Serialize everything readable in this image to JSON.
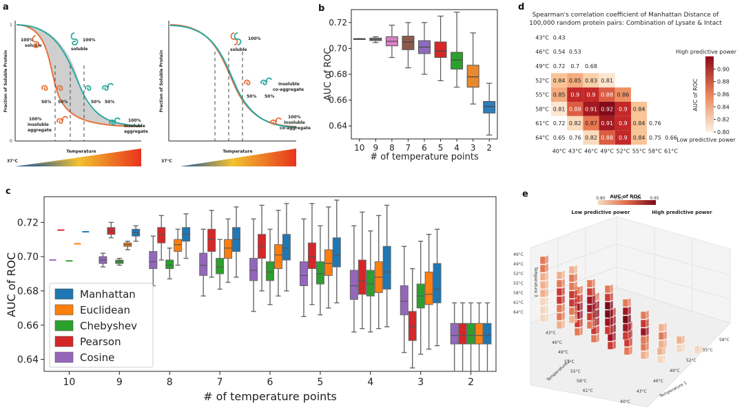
{
  "panels": {
    "a": {
      "label": "a",
      "ylabel": "Fraction of Soluble Protein",
      "xlabel": "Temperature",
      "temp_label": "37°C",
      "y_ticks": [
        "1",
        "0"
      ],
      "left_annotations": [
        "100%",
        "soluble",
        "100%",
        "soluble",
        "50%",
        "50%",
        "50%",
        "50%",
        "100%",
        "insoluble",
        "aggregate",
        "100%",
        "insoluble",
        "aggregate"
      ],
      "right_annotations": [
        "100%",
        "soluble",
        "insoluble",
        "co-aggregate",
        "50%",
        "50%",
        "100%",
        "insoluble",
        "co-aggregate"
      ]
    },
    "b": {
      "label": "b"
    },
    "c": {
      "label": "c"
    },
    "d": {
      "label": "d",
      "title_lines": [
        "Spearman's correlation coefficient of Manhattan Distance of",
        "100,000 random protein pairs: Combination of Lysate & Intact"
      ],
      "high_label": "High predictive power",
      "low_label": "Low predictive power",
      "cbar_label": "AUC of ROC",
      "cbar_ticks": [
        "0.90",
        "0.88",
        "0.86",
        "0.84",
        "0.82",
        "0.80"
      ]
    },
    "e": {
      "label": "e",
      "cbar_title": "AUC of ROC",
      "cbar_ticks": [
        "0.80",
        "0.85",
        "0.90",
        "0.95"
      ],
      "low_label": "Low predictive power",
      "high_label": "High predictive power",
      "temp1_label": "Temperature 1",
      "temp2_label": "Temperature 2",
      "temp3_label": "Temperature 3",
      "z_ticks": [
        "46°C",
        "49°C",
        "52°C",
        "55°C",
        "58°C",
        "61°C",
        "64°C"
      ],
      "t2_ticks": [
        "43°C",
        "46°C",
        "49°C",
        "52°C",
        "55°C",
        "58°C",
        "61°C"
      ],
      "t1_ticks": [
        "40°C",
        "43°C",
        "46°C",
        "49°C",
        "52°C",
        "55°C",
        "58°C"
      ]
    }
  },
  "colors": {
    "Manhattan": "#1f77b4",
    "Euclidean": "#ff7f0e",
    "Chebyshev": "#2ca02c",
    "Pearson": "#d62728",
    "Cosine": "#9467bd",
    "teal": "#2aa8a0",
    "orange_curve": "#e8703a"
  },
  "chart_data": [
    {
      "panel": "b",
      "type": "box",
      "xlabel": "# of temperature points",
      "ylabel": "AUC of ROC",
      "ylim": [
        0.63,
        0.73
      ],
      "yticks": [
        "0.64",
        "0.66",
        "0.68",
        "0.70",
        "0.72"
      ],
      "categories": [
        "10",
        "9",
        "8",
        "7",
        "6",
        "5",
        "4",
        "3",
        "2"
      ],
      "box_colors": [
        "#4e7fb5",
        "#8a8a8a",
        "#d97fc8",
        "#8c5a4a",
        "#8f6bbf",
        "#d62728",
        "#2ca02c",
        "#e8892e",
        "#2f7db8"
      ],
      "boxes": [
        {
          "min": 0.7075,
          "q1": 0.7075,
          "med": 0.7075,
          "q3": 0.7075,
          "max": 0.7075
        },
        {
          "min": 0.7045,
          "q1": 0.706,
          "med": 0.707,
          "q3": 0.708,
          "max": 0.709
        },
        {
          "min": 0.693,
          "q1": 0.702,
          "med": 0.7055,
          "q3": 0.709,
          "max": 0.718
        },
        {
          "min": 0.685,
          "q1": 0.699,
          "med": 0.705,
          "q3": 0.7095,
          "max": 0.72
        },
        {
          "min": 0.68,
          "q1": 0.696,
          "med": 0.701,
          "q3": 0.706,
          "max": 0.72
        },
        {
          "min": 0.675,
          "q1": 0.693,
          "med": 0.698,
          "q3": 0.705,
          "max": 0.725
        },
        {
          "min": 0.67,
          "q1": 0.684,
          "med": 0.691,
          "q3": 0.697,
          "max": 0.728
        },
        {
          "min": 0.657,
          "q1": 0.67,
          "med": 0.678,
          "q3": 0.687,
          "max": 0.712
        },
        {
          "min": 0.633,
          "q1": 0.65,
          "med": 0.655,
          "q3": 0.659,
          "max": 0.673
        }
      ]
    },
    {
      "panel": "c",
      "type": "box",
      "xlabel": "# of temperature points",
      "ylabel": "AUC of ROC",
      "ylim": [
        0.633,
        0.735
      ],
      "yticks": [
        "0.64",
        "0.66",
        "0.68",
        "0.70",
        "0.72"
      ],
      "categories": [
        "10",
        "9",
        "8",
        "7",
        "6",
        "5",
        "4",
        "3",
        "2"
      ],
      "series_order": [
        "Cosine",
        "Pearson",
        "Chebyshev",
        "Euclidean",
        "Manhattan"
      ],
      "legend": [
        "Manhattan",
        "Euclidean",
        "Chebyshev",
        "Pearson",
        "Cosine"
      ],
      "legend_position": "lower-left",
      "groups": [
        {
          "Cosine": [
            0.698,
            0.698,
            0.698,
            0.698,
            0.698
          ],
          "Pearson": [
            0.7155,
            0.7155,
            0.7155,
            0.7155,
            0.7155
          ],
          "Chebyshev": [
            0.6975,
            0.6975,
            0.6975,
            0.6975,
            0.6975
          ],
          "Euclidean": [
            0.7075,
            0.7075,
            0.7075,
            0.7075,
            0.7075
          ],
          "Manhattan": [
            0.7145,
            0.7145,
            0.7145,
            0.7145,
            0.7145
          ]
        },
        {
          "Cosine": [
            0.694,
            0.696,
            0.698,
            0.7,
            0.702
          ],
          "Pearson": [
            0.711,
            0.713,
            0.715,
            0.717,
            0.72
          ],
          "Chebyshev": [
            0.695,
            0.696,
            0.697,
            0.698,
            0.699
          ],
          "Euclidean": [
            0.704,
            0.706,
            0.707,
            0.708,
            0.709
          ],
          "Manhattan": [
            0.709,
            0.712,
            0.714,
            0.716,
            0.718
          ]
        },
        {
          "Cosine": [
            0.683,
            0.693,
            0.697,
            0.703,
            0.712
          ],
          "Pearson": [
            0.698,
            0.708,
            0.713,
            0.717,
            0.724
          ],
          "Chebyshev": [
            0.687,
            0.693,
            0.695,
            0.698,
            0.705
          ],
          "Euclidean": [
            0.695,
            0.703,
            0.707,
            0.71,
            0.716
          ],
          "Manhattan": [
            0.699,
            0.709,
            0.713,
            0.717,
            0.725
          ]
        },
        {
          "Cosine": [
            0.677,
            0.689,
            0.695,
            0.702,
            0.716
          ],
          "Pearson": [
            0.688,
            0.703,
            0.71,
            0.716,
            0.727
          ],
          "Chebyshev": [
            0.681,
            0.69,
            0.694,
            0.699,
            0.71
          ],
          "Euclidean": [
            0.685,
            0.699,
            0.705,
            0.71,
            0.722
          ],
          "Manhattan": [
            0.688,
            0.703,
            0.71,
            0.717,
            0.729
          ]
        },
        {
          "Cosine": [
            0.668,
            0.686,
            0.692,
            0.699,
            0.722
          ],
          "Pearson": [
            0.68,
            0.699,
            0.706,
            0.713,
            0.73
          ],
          "Chebyshev": [
            0.672,
            0.686,
            0.691,
            0.697,
            0.716
          ],
          "Euclidean": [
            0.677,
            0.693,
            0.701,
            0.707,
            0.727
          ],
          "Manhattan": [
            0.68,
            0.698,
            0.705,
            0.713,
            0.731
          ]
        },
        {
          "Cosine": [
            0.665,
            0.683,
            0.689,
            0.697,
            0.722
          ],
          "Pearson": [
            0.672,
            0.693,
            0.7,
            0.708,
            0.731
          ],
          "Chebyshev": [
            0.666,
            0.684,
            0.69,
            0.697,
            0.718
          ],
          "Euclidean": [
            0.67,
            0.689,
            0.696,
            0.704,
            0.729
          ],
          "Manhattan": [
            0.673,
            0.694,
            0.701,
            0.711,
            0.733
          ]
        },
        {
          "Cosine": [
            0.656,
            0.675,
            0.683,
            0.692,
            0.718
          ],
          "Pearson": [
            0.658,
            0.678,
            0.686,
            0.698,
            0.726
          ],
          "Chebyshev": [
            0.656,
            0.677,
            0.684,
            0.692,
            0.715
          ],
          "Euclidean": [
            0.658,
            0.679,
            0.688,
            0.697,
            0.724
          ],
          "Manhattan": [
            0.659,
            0.681,
            0.691,
            0.706,
            0.73
          ]
        },
        {
          "Cosine": [
            0.644,
            0.666,
            0.674,
            0.683,
            0.706
          ],
          "Pearson": [
            0.635,
            0.651,
            0.659,
            0.668,
            0.693
          ],
          "Chebyshev": [
            0.643,
            0.67,
            0.677,
            0.684,
            0.709
          ],
          "Euclidean": [
            0.646,
            0.672,
            0.678,
            0.691,
            0.713
          ],
          "Manhattan": [
            0.648,
            0.673,
            0.681,
            0.696,
            0.716
          ]
        },
        {
          "Cosine": [
            0.633,
            0.649,
            0.654,
            0.661,
            0.673
          ],
          "Pearson": [
            0.633,
            0.649,
            0.654,
            0.661,
            0.673
          ],
          "Chebyshev": [
            0.633,
            0.649,
            0.654,
            0.661,
            0.673
          ],
          "Euclidean": [
            0.633,
            0.649,
            0.654,
            0.661,
            0.673
          ],
          "Manhattan": [
            0.633,
            0.649,
            0.654,
            0.661,
            0.673
          ]
        }
      ]
    },
    {
      "panel": "d",
      "type": "heatmap",
      "row_labels": [
        "43°C",
        "46°C",
        "49°C",
        "52°C",
        "55°C",
        "58°C",
        "61°C",
        "64°C"
      ],
      "col_labels": [
        "40°C",
        "43°C",
        "46°C",
        "49°C",
        "52°C",
        "55°C",
        "58°C",
        "61°C"
      ],
      "vmin": 0.8,
      "vmax": 0.92,
      "values": [
        [
          0.43
        ],
        [
          0.54,
          0.53
        ],
        [
          0.72,
          0.7,
          0.68
        ],
        [
          0.84,
          0.85,
          0.83,
          0.81
        ],
        [
          0.85,
          0.9,
          0.9,
          0.88,
          0.86
        ],
        [
          0.81,
          0.88,
          0.91,
          0.92,
          0.9,
          0.84
        ],
        [
          0.72,
          0.82,
          0.87,
          0.91,
          0.9,
          0.84,
          0.76
        ],
        [
          0.65,
          0.76,
          0.82,
          0.88,
          0.9,
          0.84,
          0.75,
          0.66
        ]
      ]
    },
    {
      "panel": "e",
      "type": "bar3d",
      "vmin": 0.8,
      "vmax": 0.95
    }
  ]
}
